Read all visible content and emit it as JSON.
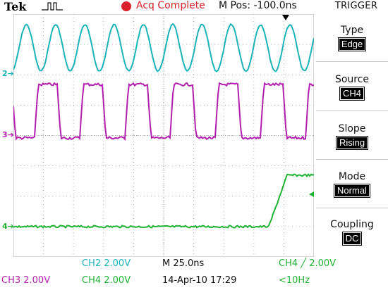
{
  "header": {
    "brand": "Tek",
    "run_state_icon": "single-pulse-icon",
    "acq_status": "Acq Complete",
    "m_pos": "M Pos: -100.0ns",
    "menu_title": "TRIGGER"
  },
  "channel_markers": {
    "ch2": "2",
    "ch3": "3",
    "ch4": "4"
  },
  "trigger_menu": [
    {
      "label": "Type",
      "value": "Edge"
    },
    {
      "label": "Source",
      "value": "CH4"
    },
    {
      "label": "Slope",
      "value": "Rising"
    },
    {
      "label": "Mode",
      "value": "Normal"
    },
    {
      "label": "Coupling",
      "value": "DC"
    }
  ],
  "status_bar": {
    "ch2": "CH2  2.00V",
    "ch3": "CH3  2.00V",
    "ch4": "CH4  2.00V",
    "timebase": "M 25.0ns",
    "datetime": "14-Apr-10 17:29",
    "trigger": "CH4 ╱ 2.00V",
    "freq": "<10Hz"
  },
  "colors": {
    "ch2": "#1ab3b8",
    "ch3": "#b21fae",
    "ch4": "#1fb334",
    "grid": "#9a9a9a",
    "acq": "#d8202a"
  }
}
